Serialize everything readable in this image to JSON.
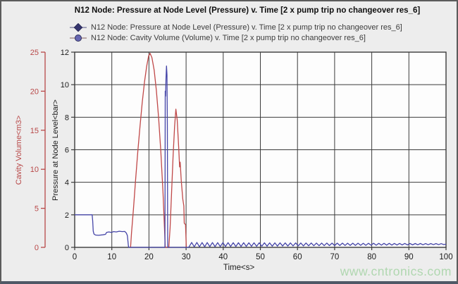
{
  "title": "N12 Node: Pressure at Node Level (Pressure) v. Time [2 x pump trip no changeover res_6]",
  "legend": [
    {
      "label": "N12 Node: Pressure at Node Level (Pressure) v. Time [2 x pump trip no changeover res_6]",
      "marker": "diamond",
      "line_color": "#8a8aa8",
      "marker_color": "#35356e"
    },
    {
      "label": "N12 Node: Cavity Volume (Volume) v. Time [2 x pump trip no changeover res_6]",
      "marker": "circle",
      "line_color": "#a89090",
      "marker_color": "#6868b2"
    }
  ],
  "watermark": "www.cntronics.com",
  "colors": {
    "background": "#ededed",
    "plot_background": "#fdfdfd",
    "grid": "#3b3b3b",
    "pressure_series": "#4545a8",
    "cavity_series": "#c04848",
    "cavity_axis": "#b84848",
    "tick_text": "#1b1b1b",
    "watermark_green": "#b0d7b0"
  },
  "chart_data": {
    "type": "line",
    "title": "N12 Node: Pressure at Node Level (Pressure) v. Time [2 x pump trip no changeover res_6]",
    "xlabel": "Time<s>",
    "xlim": [
      0,
      100
    ],
    "x_ticks": [
      0,
      10,
      20,
      30,
      40,
      50,
      60,
      70,
      80,
      90,
      100
    ],
    "grid": true,
    "legend_position": "top-left",
    "axes": {
      "pressure": {
        "label": "Pressure at Node Level<bar>",
        "lim": [
          0,
          12
        ],
        "ticks": [
          0,
          2,
          4,
          6,
          8,
          10,
          12
        ],
        "color": "#1b1b1b"
      },
      "cavity": {
        "label": "Cavity Volume<m3>",
        "lim": [
          0,
          25
        ],
        "ticks": [
          0,
          5,
          10,
          15,
          20,
          25
        ],
        "color": "#b84848"
      }
    },
    "series": [
      {
        "name": "N12 Node: Pressure at Node Level (Pressure)",
        "axis": "pressure",
        "units": "bar",
        "color": "#4545a8",
        "points": [
          [
            0,
            2
          ],
          [
            4.7,
            2
          ],
          [
            4.85,
            1.6
          ],
          [
            5.0,
            1.0
          ],
          [
            5.2,
            0.82
          ],
          [
            5.6,
            0.76
          ],
          [
            6.4,
            0.74
          ],
          [
            7.6,
            0.77
          ],
          [
            8.3,
            0.8
          ],
          [
            8.6,
            0.92
          ],
          [
            9.2,
            0.95
          ],
          [
            9.9,
            0.92
          ],
          [
            10.5,
            0.97
          ],
          [
            11.2,
            0.95
          ],
          [
            12.0,
            0.99
          ],
          [
            12.8,
            0.97
          ],
          [
            13.5,
            0.98
          ],
          [
            13.9,
            0.88
          ],
          [
            14.2,
            0.72
          ],
          [
            14.45,
            0.1
          ],
          [
            14.55,
            0
          ],
          [
            24.3,
            0
          ],
          [
            24.38,
            9.6
          ],
          [
            24.48,
            9.3
          ],
          [
            24.6,
            10.4
          ],
          [
            24.72,
            11.15
          ],
          [
            24.85,
            10.6
          ],
          [
            24.95,
            7.5
          ],
          [
            25.05,
            0
          ],
          [
            30.6,
            0
          ]
        ],
        "tail_oscillation": {
          "description": "decaying zigzag around ~0.2 bar",
          "t_start": 30.8,
          "t_end": 100,
          "step": 0.7,
          "high_start": 0.3,
          "high_end": 0.23,
          "low_start": 0.03,
          "low_end": 0.17
        }
      },
      {
        "name": "N12 Node: Cavity Volume (Volume)",
        "axis": "cavity",
        "units": "m3",
        "color": "#c04848",
        "points": [
          [
            15.05,
            0
          ],
          [
            15.3,
            1.8
          ],
          [
            15.8,
            4.8
          ],
          [
            16.4,
            8.6
          ],
          [
            17.0,
            12.3
          ],
          [
            17.6,
            15.6
          ],
          [
            18.2,
            18.6
          ],
          [
            18.8,
            21.2
          ],
          [
            19.4,
            23.2
          ],
          [
            19.9,
            24.5
          ],
          [
            20.3,
            24.85
          ],
          [
            20.8,
            24.3
          ],
          [
            21.4,
            22.7
          ],
          [
            22.0,
            20.1
          ],
          [
            22.6,
            16.6
          ],
          [
            23.2,
            12.2
          ],
          [
            23.8,
            6.9
          ],
          [
            24.2,
            2.3
          ],
          [
            24.38,
            0
          ],
          [
            25.35,
            0
          ],
          [
            25.7,
            2.5
          ],
          [
            26.1,
            7.0
          ],
          [
            26.5,
            11.8
          ],
          [
            26.9,
            15.5
          ],
          [
            27.25,
            17.7
          ],
          [
            27.6,
            16.3
          ],
          [
            28.0,
            12.8
          ],
          [
            28.25,
            10.3
          ],
          [
            28.4,
            10.9
          ],
          [
            28.7,
            8.6
          ],
          [
            29.1,
            6.2
          ],
          [
            29.4,
            5.3
          ],
          [
            29.5,
            3.1
          ],
          [
            29.85,
            2.9
          ],
          [
            30.05,
            0
          ]
        ]
      }
    ]
  }
}
